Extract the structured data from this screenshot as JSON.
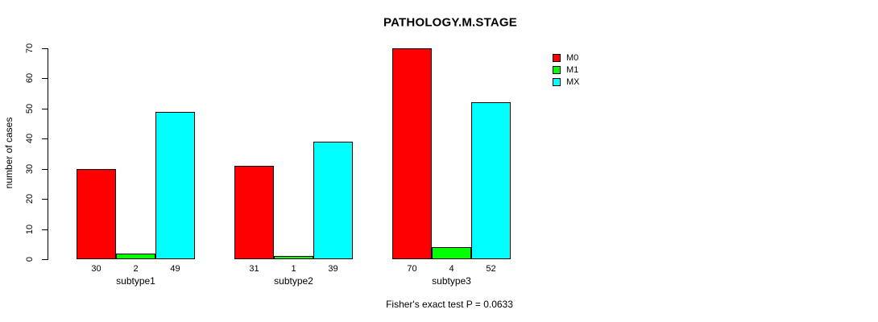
{
  "chart_data": {
    "type": "bar",
    "title": "PATHOLOGY.M.STAGE",
    "xlabel": "",
    "ylabel": "number of cases",
    "categories": [
      "subtype1",
      "subtype2",
      "subtype3"
    ],
    "series": [
      {
        "name": "M0",
        "color": "#ff0000",
        "values": [
          30,
          31,
          70
        ]
      },
      {
        "name": "M1",
        "color": "#00ff00",
        "values": [
          2,
          1,
          4
        ]
      },
      {
        "name": "MX",
        "color": "#00ffff",
        "values": [
          49,
          39,
          52
        ]
      }
    ],
    "ylim": [
      0,
      70
    ],
    "yticks": [
      0,
      10,
      20,
      30,
      40,
      50,
      60,
      70
    ],
    "grid": false,
    "legend_position": "top-right",
    "bar_value_labels_shown": true,
    "annotation": "Fisher's exact test P = 0.0633",
    "bar_border_color": "#000000",
    "text_color": "#000000",
    "background_color": "#ffffff"
  }
}
